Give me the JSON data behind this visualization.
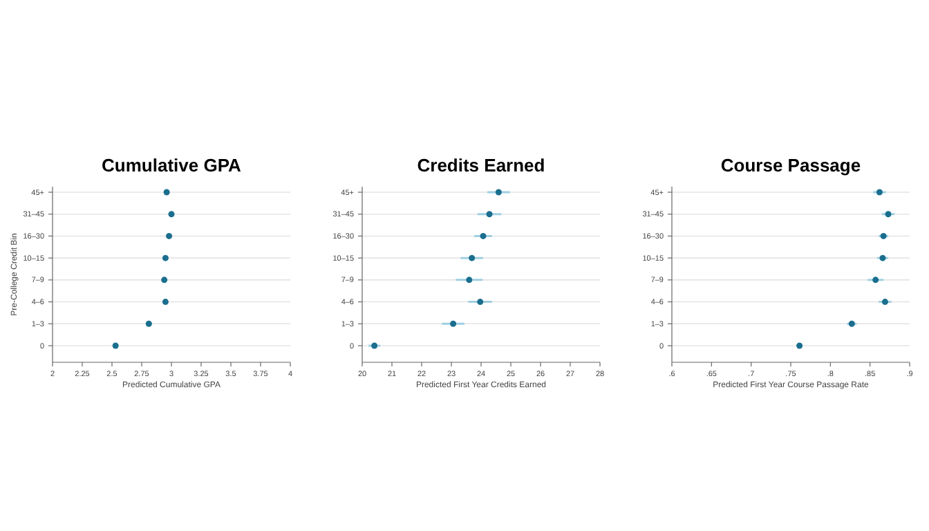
{
  "chart_data": [
    {
      "type": "scatter",
      "orientation": "horizontal",
      "title": "Cumulative GPA",
      "xlabel": "Predicted Cumulative GPA",
      "ylabel": "Pre-College Credit Bin",
      "categories": [
        "45+",
        "31–45",
        "16–30",
        "10–15",
        "7–9",
        "4–6",
        "1–3",
        "0"
      ],
      "color": "#1a6e8e",
      "values": [
        2.96,
        3.0,
        2.98,
        2.95,
        2.94,
        2.95,
        2.81,
        2.53
      ],
      "xlim": [
        2,
        4
      ],
      "xticks": [
        2,
        2.25,
        2.5,
        2.75,
        3,
        3.25,
        3.5,
        3.75,
        4
      ],
      "grid": "y",
      "marker": "circle"
    },
    {
      "type": "scatter",
      "orientation": "horizontal",
      "title": "Credits Earned",
      "xlabel": "Predicted First Year Credits Earned",
      "categories": [
        "45+",
        "31–45",
        "16–30",
        "10–15",
        "7–9",
        "4–6",
        "1–3",
        "0"
      ],
      "color": "#1a6e8e",
      "values": [
        24.59,
        24.28,
        24.07,
        23.69,
        23.6,
        23.97,
        23.06,
        20.41
      ],
      "errors": [
        0.38,
        0.4,
        0.3,
        0.38,
        0.45,
        0.4,
        0.38,
        0.2
      ],
      "xlim": [
        20,
        28
      ],
      "xticks": [
        20,
        21,
        22,
        23,
        24,
        25,
        26,
        27,
        28
      ],
      "grid": "y",
      "marker": "circle"
    },
    {
      "type": "scatter",
      "orientation": "horizontal",
      "title": "Course Passage",
      "xlabel": "Predicted First Year Course Passage Rate",
      "categories": [
        "45+",
        "31–45",
        "16–30",
        "10–15",
        "7–9",
        "4–6",
        "1–3",
        "0"
      ],
      "color": "#1a6e8e",
      "values": [
        0.862,
        0.873,
        0.867,
        0.866,
        0.857,
        0.869,
        0.827,
        0.761
      ],
      "errors": [
        0.008,
        0.008,
        0.006,
        0.007,
        0.01,
        0.008,
        0.006,
        0.003
      ],
      "xlim": [
        0.6,
        0.9
      ],
      "xticks": [
        {
          "value": 0.6,
          "label": ".6"
        },
        {
          "value": 0.65,
          "label": ".65"
        },
        {
          "value": 0.7,
          "label": ".7"
        },
        {
          "value": 0.75,
          "label": ".75"
        },
        {
          "value": 0.8,
          "label": ".8"
        },
        {
          "value": 0.85,
          "label": ".85"
        },
        {
          "value": 0.9,
          "label": ".9"
        }
      ],
      "grid": "y",
      "marker": "circle"
    }
  ]
}
